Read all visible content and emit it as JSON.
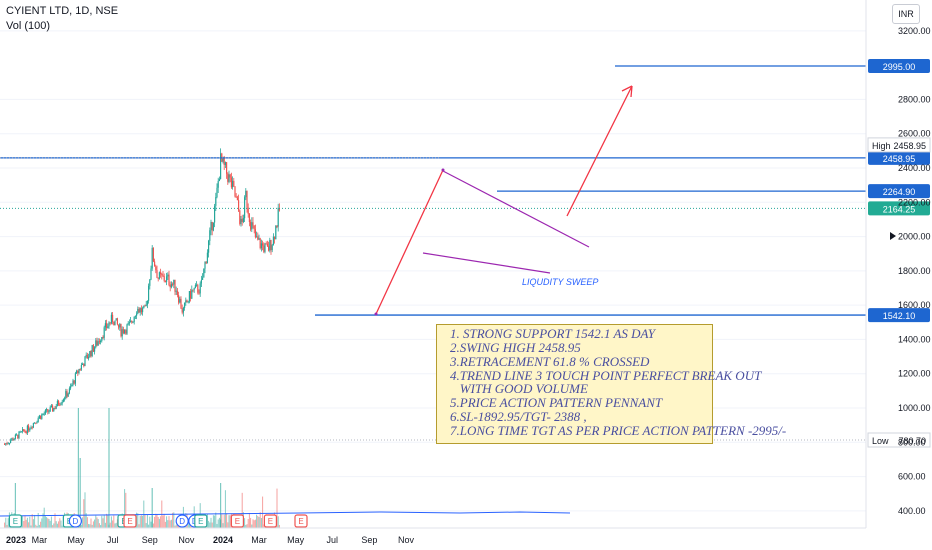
{
  "header": {
    "title": "CYIENT LTD, 1D, NSE",
    "volume_label": "Vol (100)",
    "currency": "INR"
  },
  "colors": {
    "up": "#26a69a",
    "down": "#ef5350",
    "line": "#1e66d0",
    "arrow": "#f23645",
    "pennant": "#9c27b0",
    "note_bg": "#fff6c8"
  },
  "annotation": {
    "lines": [
      "1. STRONG SUPPORT 1542.1 AS DAY",
      "2.SWING HIGH 2458.95",
      "3.RETRACEMENT 61.8 % CROSSED",
      "4.TREND LINE 3 TOUCH POINT PERFECT BREAK OUT",
      "   WITH GOOD VOLUME",
      "5.PRICE ACTION PATTERN PENNANT",
      "6.SL-1892.95/TGT- 2388 ,",
      "7.LONG TIME TGT AS PER PRICE ACTION PATTERN -2995/-"
    ],
    "liquidity_label": "LIQUDITY SWEEP"
  },
  "chart_data": {
    "type": "candlestick",
    "y_ticks": [
      400,
      600,
      800,
      1000,
      1200,
      1400,
      1600,
      1800,
      2000,
      2200,
      2400,
      2600,
      2800,
      3200
    ],
    "x_ticks": [
      "2023",
      "Mar",
      "May",
      "Jul",
      "Sep",
      "Nov",
      "2024",
      "Mar",
      "May",
      "Jul",
      "Sep",
      "Nov"
    ],
    "ylim": [
      300,
      3380
    ],
    "levels": [
      {
        "label": "2995.00",
        "value": 2995.0
      },
      {
        "label": "2458.95",
        "value": 2458.95
      },
      {
        "label": "2264.90",
        "value": 2264.9
      },
      {
        "label": "2164.25",
        "value": 2164.25,
        "current": true
      },
      {
        "label": "1542.10",
        "value": 1542.1
      }
    ],
    "high": {
      "label": "High",
      "value": "2458.95"
    },
    "low": {
      "label": "Low",
      "value": "780.70"
    },
    "price_path": [
      {
        "date": "2023-01-02",
        "close": 790
      },
      {
        "date": "2023-01-20",
        "close": 830
      },
      {
        "date": "2023-02-10",
        "close": 880
      },
      {
        "date": "2023-03-01",
        "close": 950
      },
      {
        "date": "2023-03-25",
        "close": 1000
      },
      {
        "date": "2023-04-20",
        "close": 1100
      },
      {
        "date": "2023-05-05",
        "close": 1220
      },
      {
        "date": "2023-05-20",
        "close": 1300
      },
      {
        "date": "2023-06-05",
        "close": 1380
      },
      {
        "date": "2023-06-20",
        "close": 1470
      },
      {
        "date": "2023-07-01",
        "close": 1520
      },
      {
        "date": "2023-07-15",
        "close": 1450
      },
      {
        "date": "2023-07-30",
        "close": 1480
      },
      {
        "date": "2023-08-10",
        "close": 1580
      },
      {
        "date": "2023-08-25",
        "close": 1560
      },
      {
        "date": "2023-09-05",
        "close": 1900
      },
      {
        "date": "2023-09-15",
        "close": 1760
      },
      {
        "date": "2023-10-01",
        "close": 1750
      },
      {
        "date": "2023-10-15",
        "close": 1700
      },
      {
        "date": "2023-10-26",
        "close": 1560
      },
      {
        "date": "2023-11-10",
        "close": 1680
      },
      {
        "date": "2023-11-25",
        "close": 1700
      },
      {
        "date": "2023-12-10",
        "close": 2000
      },
      {
        "date": "2023-12-20",
        "close": 2200
      },
      {
        "date": "2023-12-28",
        "close": 2440
      },
      {
        "date": "2024-01-10",
        "close": 2350
      },
      {
        "date": "2024-01-20",
        "close": 2250
      },
      {
        "date": "2024-01-27",
        "close": 2150
      },
      {
        "date": "2024-02-01",
        "close": 2050
      },
      {
        "date": "2024-02-08",
        "close": 2240
      },
      {
        "date": "2024-02-15",
        "close": 2100
      },
      {
        "date": "2024-02-25",
        "close": 1980
      },
      {
        "date": "2024-03-05",
        "close": 1950
      },
      {
        "date": "2024-03-15",
        "close": 1920
      },
      {
        "date": "2024-03-25",
        "close": 1990
      },
      {
        "date": "2024-04-05",
        "close": 2170
      }
    ],
    "earnings_markers": [
      "2023-01-20",
      "2023-04-20",
      "2023-04-30",
      "2023-07-20",
      "2023-07-30",
      "2023-10-25",
      "2023-11-15",
      "2023-11-25",
      "2024-01-25",
      "2024-03-20",
      "2024-05-10"
    ]
  }
}
